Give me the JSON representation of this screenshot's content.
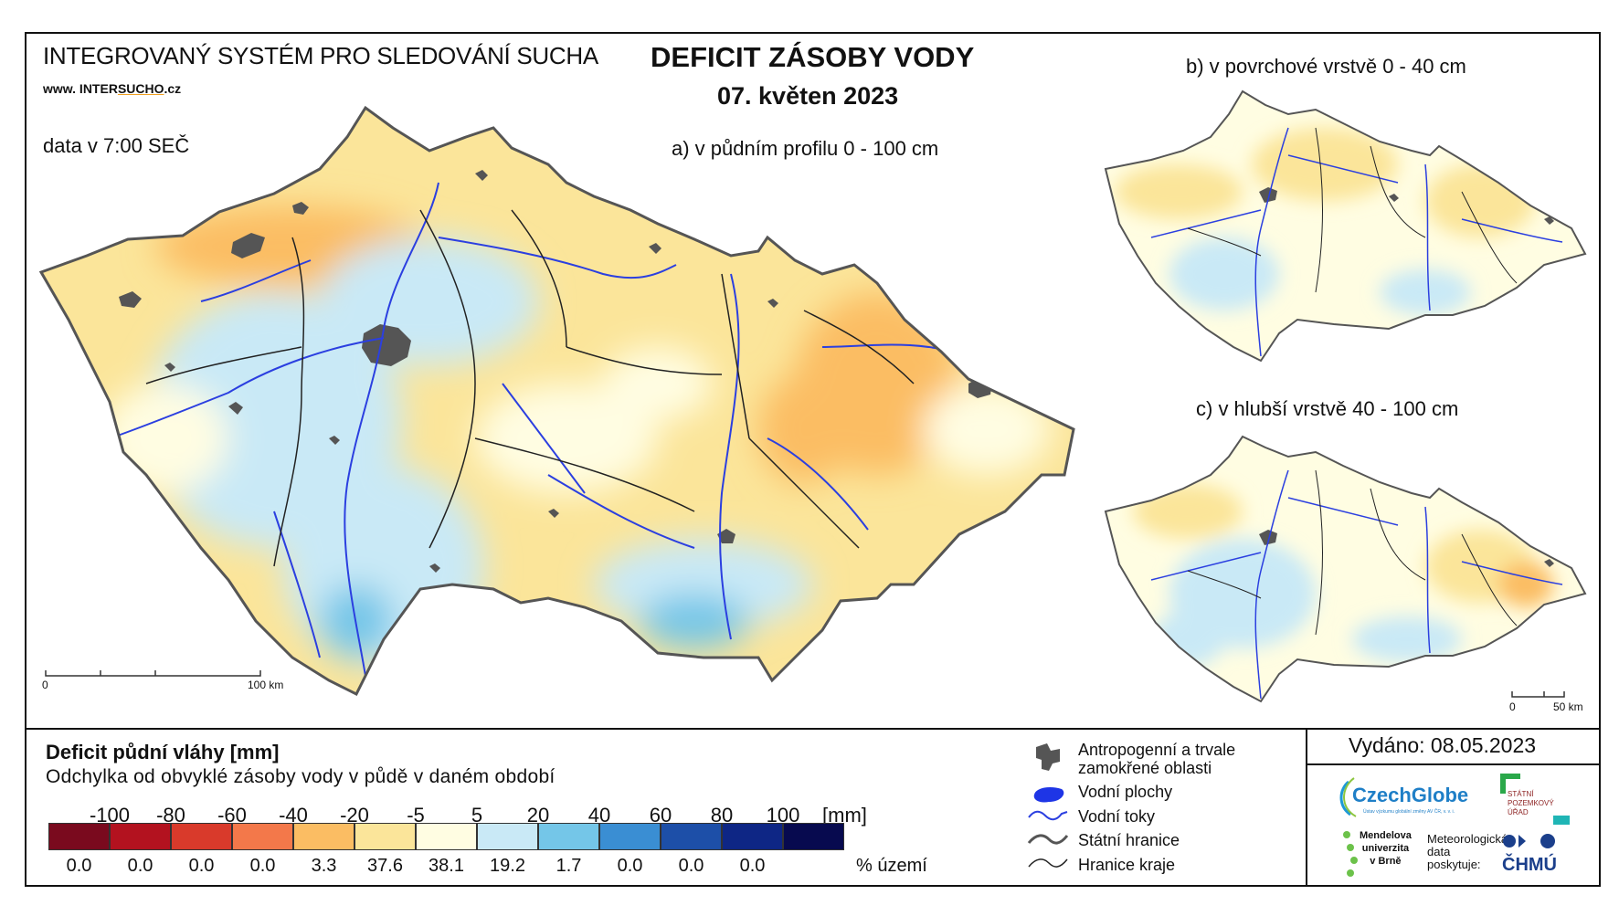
{
  "header": {
    "system_title": "INTEGROVANÝ SYSTÉM PRO SLEDOVÁNÍ SUCHA",
    "website_prefix": "www. INTER",
    "website_brand": "SUCHO",
    "website_suffix": ".cz",
    "data_time": "data v 7:00 SEČ",
    "main_title": "DEFICIT ZÁSOBY VODY",
    "date": "07. květen 2023"
  },
  "maps": {
    "a_label": "a) v půdním profilu 0 - 100 cm",
    "b_label": "b) v povrchové vrstvě 0 - 40 cm",
    "c_label": "c) v hlubší vrstvě 40 - 100 cm",
    "scale_main_start": "0",
    "scale_main_end": "100 km",
    "scale_small_start": "0",
    "scale_small_end": "50 km"
  },
  "legend": {
    "title": "Deficit půdní vláhy  [mm]",
    "subtitle": "Odchylka od obvyklé zásoby vody v půdě v daném období",
    "unit_label": "[mm]",
    "percent_label": "% území",
    "breaks": [
      "-100",
      "-80",
      "-60",
      "-40",
      "-20",
      "-5",
      "5",
      "20",
      "40",
      "60",
      "80",
      "100"
    ],
    "classes": [
      {
        "color": "#7a0a1e",
        "percent": "0.0"
      },
      {
        "color": "#b3121f",
        "percent": "0.0"
      },
      {
        "color": "#d93a2b",
        "percent": "0.0"
      },
      {
        "color": "#f3784a",
        "percent": "0.0"
      },
      {
        "color": "#fbbd63",
        "percent": "3.3"
      },
      {
        "color": "#fbe59a",
        "percent": "37.6"
      },
      {
        "color": "#fffde2",
        "percent": "38.1"
      },
      {
        "color": "#c9e9f6",
        "percent": "19.2"
      },
      {
        "color": "#74c6e8",
        "percent": "1.7"
      },
      {
        "color": "#3a8ed3",
        "percent": "0.0"
      },
      {
        "color": "#1d4fa8",
        "percent": "0.0"
      },
      {
        "color": "#0e2685",
        "percent": "0.0"
      },
      {
        "color": "#070a4f",
        "percent": ""
      }
    ]
  },
  "symbols": {
    "items": [
      {
        "label": "Antropogenní a trvale",
        "label2": "zamokřené oblasti",
        "icon": "urban-area-icon"
      },
      {
        "label": "Vodní plochy",
        "icon": "water-body-icon"
      },
      {
        "label": "Vodní toky",
        "icon": "river-icon"
      },
      {
        "label": "Státní hranice",
        "icon": "state-border-icon"
      },
      {
        "label": "Hranice kraje",
        "icon": "region-border-icon"
      }
    ]
  },
  "footer": {
    "issued": "Vydáno: 08.05.2023",
    "czechglobe": "CzechGlobe",
    "czechglobe_sub": "Ústav výzkumu globální změny AV ČR, v. v. i.",
    "spu_line1": "STÁTNÍ",
    "spu_line2": "POZEMKOVÝ",
    "spu_line3": "ÚŘAD",
    "mendel_line1": "Mendelova",
    "mendel_line2": "univerzita",
    "mendel_line3": "v Brně",
    "meteo_line1": "Meteorologická",
    "meteo_line2": "data",
    "meteo_line3": "poskytuje:",
    "chmu": "ČHMÚ"
  },
  "colors": {
    "river": "#2b3fe0",
    "border": "#222222",
    "urban": "#555555",
    "dry_light": "#fbe59a",
    "dry": "#fbbd63",
    "normal": "#fffde2",
    "wet": "#c9e9f6",
    "wetter": "#74c6e8"
  }
}
